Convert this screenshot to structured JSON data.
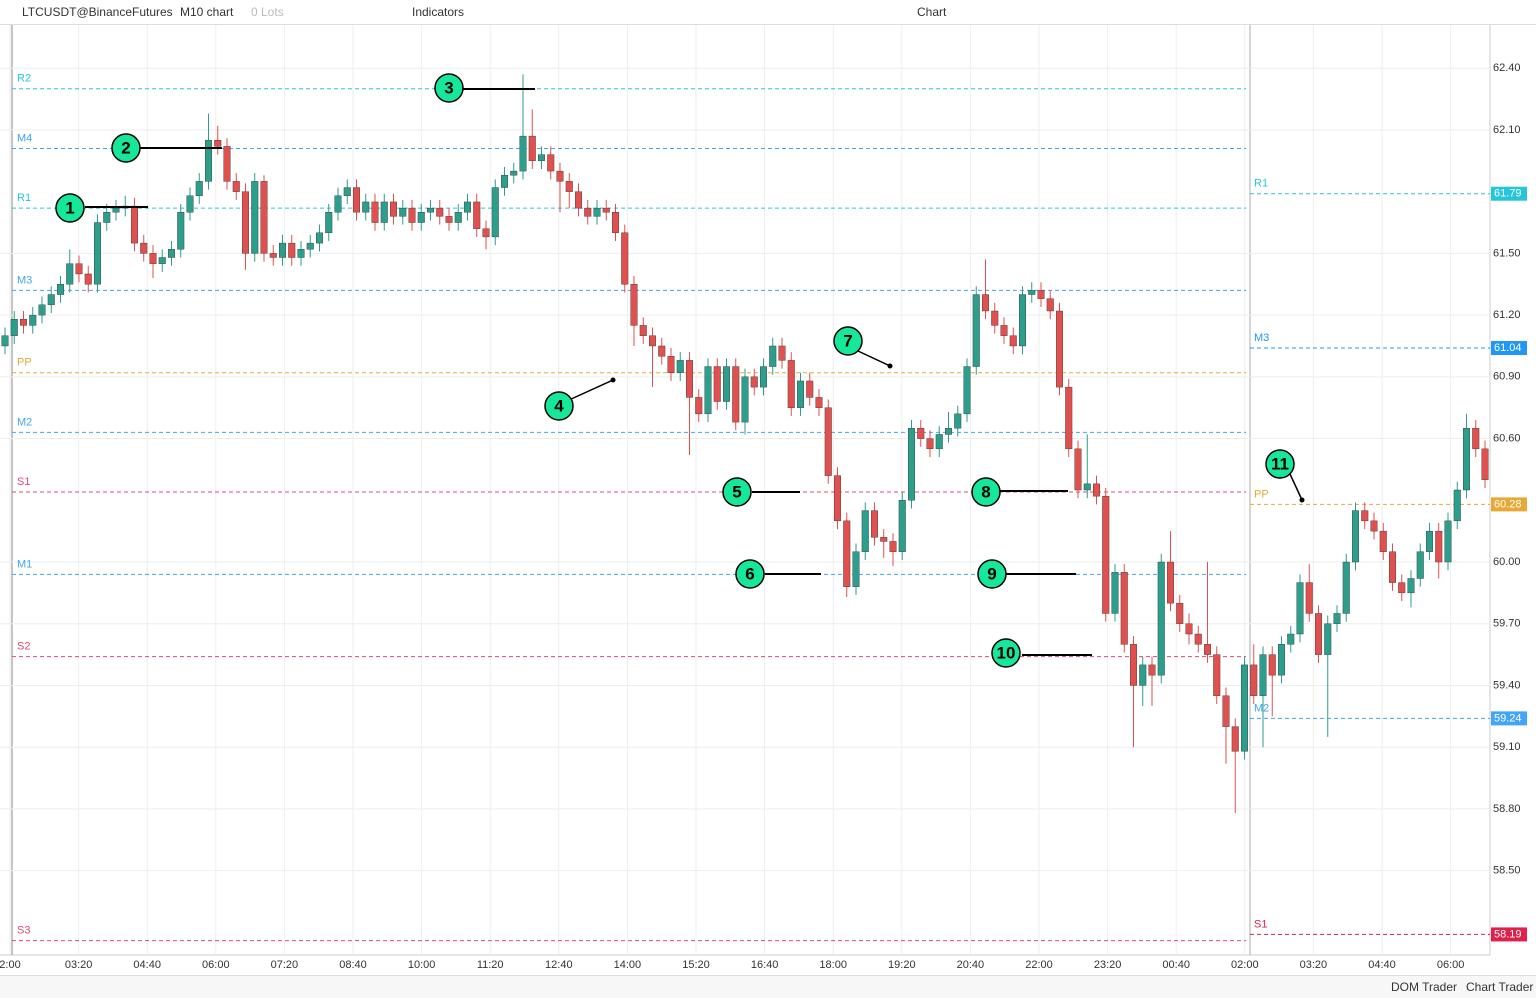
{
  "toolbar": {
    "symbol": "LTCUSDT@BinanceFutures",
    "timeframe": "M10 chart",
    "lots": "0 Lots",
    "indicators": "Indicators",
    "title": "Chart"
  },
  "footer": {
    "dom": "DOM Trader",
    "chart_trader": "Chart Trader"
  },
  "chart_data": {
    "type": "candlestick",
    "up_color": "#2e9e8c",
    "down_color": "#e0504f",
    "ylim": [
      58.09,
      62.61
    ],
    "yticks": [
      {
        "value": 62.4,
        "label": "62.40"
      },
      {
        "value": 62.1,
        "label": "62.10"
      },
      {
        "value": 61.5,
        "label": "61.50"
      },
      {
        "value": 61.2,
        "label": "61.20"
      },
      {
        "value": 60.9,
        "label": "60.90"
      },
      {
        "value": 60.6,
        "label": "60.60"
      },
      {
        "value": 60,
        "label": "60.00"
      },
      {
        "value": 59.7,
        "label": "59.70"
      },
      {
        "value": 59.4,
        "label": "59.40"
      },
      {
        "value": 59.1,
        "label": "59.10"
      },
      {
        "value": 58.8,
        "label": "58.80"
      },
      {
        "value": 58.5,
        "label": "58.50"
      }
    ],
    "xtick_labels": [
      "2:00",
      "03:20",
      "04:40",
      "06:00",
      "07:20",
      "08:40",
      "10:00",
      "11:20",
      "12:40",
      "14:00",
      "15:20",
      "16:40",
      "18:00",
      "19:20",
      "20:40",
      "22:00",
      "23:20",
      "00:40",
      "02:00",
      "03:20",
      "04:40",
      "06:00"
    ],
    "levels": [
      {
        "name": "R2",
        "value": 62.3,
        "color": "#26c6da"
      },
      {
        "name": "M4",
        "value": 62.01,
        "color": "#42a5f5"
      },
      {
        "name": "R1",
        "value": 61.72,
        "color": "#26c6da"
      },
      {
        "name": "M3",
        "value": 61.32,
        "color": "#42a5f5"
      },
      {
        "name": "PP",
        "value": 60.92,
        "color": "#e6a935"
      },
      {
        "name": "M2",
        "value": 60.63,
        "color": "#42a5f5"
      },
      {
        "name": "S1",
        "value": 60.34,
        "color": "#e04a6a"
      },
      {
        "name": "M1",
        "value": 59.94,
        "color": "#42a5f5"
      },
      {
        "name": "S2",
        "value": 59.54,
        "color": "#e04a6a"
      },
      {
        "name": "S3",
        "value": 58.16,
        "color": "#e04a6a"
      }
    ],
    "levels2": [
      {
        "name": "R1",
        "value": 61.79,
        "color": "#26c6da"
      },
      {
        "name": "M3",
        "value": 61.04,
        "color": "#2196f3"
      },
      {
        "name": "PP",
        "value": 60.28,
        "color": "#e6a935"
      },
      {
        "name": "M2",
        "value": 59.24,
        "color": "#42a5f5"
      },
      {
        "name": "S1",
        "value": 58.19,
        "color": "#e0204a"
      }
    ],
    "annotations": [
      "1",
      "2",
      "3",
      "4",
      "5",
      "6",
      "7",
      "8",
      "9",
      "10",
      "11"
    ],
    "candles": [
      [
        61.05,
        61.14,
        61.01,
        61.1
      ],
      [
        61.1,
        61.22,
        61.06,
        61.18
      ],
      [
        61.18,
        61.22,
        61.11,
        61.15
      ],
      [
        61.15,
        61.24,
        61.11,
        61.2
      ],
      [
        61.2,
        61.29,
        61.16,
        61.25
      ],
      [
        61.25,
        61.34,
        61.21,
        61.3
      ],
      [
        61.3,
        61.39,
        61.26,
        61.35
      ],
      [
        61.35,
        61.52,
        61.31,
        61.45
      ],
      [
        61.45,
        61.49,
        61.36,
        61.4
      ],
      [
        61.4,
        61.44,
        61.31,
        61.35
      ],
      [
        61.35,
        61.69,
        61.31,
        61.65
      ],
      [
        61.65,
        61.74,
        61.61,
        61.7
      ],
      [
        61.7,
        61.76,
        61.66,
        61.72
      ],
      [
        61.72,
        61.78,
        61.68,
        61.73
      ],
      [
        61.73,
        61.77,
        61.51,
        61.55
      ],
      [
        61.55,
        61.59,
        61.46,
        61.5
      ],
      [
        61.5,
        61.54,
        61.38,
        61.45
      ],
      [
        61.45,
        61.52,
        61.41,
        61.48
      ],
      [
        61.48,
        61.56,
        61.44,
        61.52
      ],
      [
        61.52,
        61.74,
        61.48,
        61.7
      ],
      [
        61.7,
        61.82,
        61.66,
        61.78
      ],
      [
        61.78,
        61.89,
        61.74,
        61.85
      ],
      [
        61.85,
        62.18,
        61.81,
        62.05
      ],
      [
        62.05,
        62.12,
        61.98,
        62.02
      ],
      [
        62.02,
        62.06,
        61.81,
        61.85
      ],
      [
        61.85,
        61.89,
        61.76,
        61.8
      ],
      [
        61.8,
        61.84,
        61.42,
        61.5
      ],
      [
        61.5,
        61.89,
        61.46,
        61.85
      ],
      [
        61.85,
        61.88,
        61.46,
        61.5
      ],
      [
        61.5,
        61.54,
        61.44,
        61.48
      ],
      [
        61.48,
        61.59,
        61.44,
        61.55
      ],
      [
        61.55,
        61.59,
        61.44,
        61.48
      ],
      [
        61.48,
        61.56,
        61.44,
        61.52
      ],
      [
        61.52,
        61.59,
        61.48,
        61.55
      ],
      [
        61.55,
        61.64,
        61.51,
        61.6
      ],
      [
        61.6,
        61.74,
        61.56,
        61.7
      ],
      [
        61.7,
        61.82,
        61.66,
        61.78
      ],
      [
        61.78,
        61.86,
        61.74,
        61.82
      ],
      [
        61.82,
        61.86,
        61.66,
        61.7
      ],
      [
        61.7,
        61.79,
        61.66,
        61.75
      ],
      [
        61.75,
        61.79,
        61.61,
        61.65
      ],
      [
        61.65,
        61.79,
        61.61,
        61.75
      ],
      [
        61.75,
        61.79,
        61.64,
        61.68
      ],
      [
        61.68,
        61.76,
        61.64,
        61.72
      ],
      [
        61.72,
        61.76,
        61.61,
        61.65
      ],
      [
        61.65,
        61.74,
        61.61,
        61.7
      ],
      [
        61.7,
        61.76,
        61.66,
        61.72
      ],
      [
        61.72,
        61.76,
        61.64,
        61.68
      ],
      [
        61.68,
        61.72,
        61.61,
        61.65
      ],
      [
        61.65,
        61.74,
        61.61,
        61.7
      ],
      [
        61.7,
        61.79,
        61.66,
        61.75
      ],
      [
        61.75,
        61.79,
        61.58,
        61.62
      ],
      [
        61.62,
        61.66,
        61.52,
        61.58
      ],
      [
        61.58,
        61.86,
        61.54,
        61.82
      ],
      [
        61.82,
        61.92,
        61.78,
        61.88
      ],
      [
        61.88,
        61.94,
        61.84,
        61.9
      ],
      [
        61.9,
        62.37,
        61.86,
        62.07
      ],
      [
        62.07,
        62.2,
        61.91,
        61.95
      ],
      [
        61.95,
        62.02,
        61.91,
        61.98
      ],
      [
        61.98,
        62.02,
        61.86,
        61.9
      ],
      [
        61.9,
        61.94,
        61.7,
        61.85
      ],
      [
        61.85,
        61.89,
        61.72,
        61.8
      ],
      [
        61.8,
        61.84,
        61.68,
        61.72
      ],
      [
        61.72,
        61.76,
        61.64,
        61.68
      ],
      [
        61.68,
        61.76,
        61.64,
        61.72
      ],
      [
        61.72,
        61.76,
        61.66,
        61.7
      ],
      [
        61.7,
        61.74,
        61.56,
        61.6
      ],
      [
        61.6,
        61.64,
        61.31,
        61.35
      ],
      [
        61.35,
        61.39,
        61.05,
        61.15
      ],
      [
        61.15,
        61.19,
        61.06,
        61.1
      ],
      [
        61.1,
        61.14,
        60.85,
        61.05
      ],
      [
        61.05,
        61.09,
        60.96,
        61.0
      ],
      [
        61.0,
        61.04,
        60.88,
        60.92
      ],
      [
        60.92,
        61.02,
        60.88,
        60.98
      ],
      [
        60.98,
        61.02,
        60.52,
        60.8
      ],
      [
        60.8,
        60.84,
        60.68,
        60.72
      ],
      [
        60.72,
        60.99,
        60.68,
        60.95
      ],
      [
        60.95,
        60.99,
        60.74,
        60.78
      ],
      [
        60.78,
        60.99,
        60.74,
        60.95
      ],
      [
        60.95,
        60.99,
        60.64,
        60.68
      ],
      [
        60.68,
        60.94,
        60.62,
        60.9
      ],
      [
        60.9,
        60.94,
        60.81,
        60.85
      ],
      [
        60.85,
        60.99,
        60.81,
        60.95
      ],
      [
        60.95,
        61.09,
        60.91,
        61.05
      ],
      [
        61.05,
        61.09,
        60.94,
        60.98
      ],
      [
        60.98,
        61.02,
        60.71,
        60.75
      ],
      [
        60.75,
        60.92,
        60.71,
        60.88
      ],
      [
        60.88,
        60.92,
        60.76,
        60.8
      ],
      [
        60.8,
        60.84,
        60.71,
        60.75
      ],
      [
        60.75,
        60.79,
        60.38,
        60.42
      ],
      [
        60.42,
        60.46,
        60.16,
        60.2
      ],
      [
        60.2,
        60.24,
        59.83,
        59.88
      ],
      [
        59.88,
        60.09,
        59.84,
        60.05
      ],
      [
        60.05,
        60.29,
        60.01,
        60.25
      ],
      [
        60.25,
        60.29,
        60.08,
        60.12
      ],
      [
        60.12,
        60.16,
        60.02,
        60.1
      ],
      [
        60.1,
        60.14,
        59.98,
        60.05
      ],
      [
        60.05,
        60.34,
        60.01,
        60.3
      ],
      [
        60.3,
        60.69,
        60.26,
        60.65
      ],
      [
        60.65,
        60.69,
        60.56,
        60.6
      ],
      [
        60.6,
        60.64,
        60.51,
        60.55
      ],
      [
        60.55,
        60.66,
        60.51,
        60.62
      ],
      [
        60.62,
        60.73,
        60.58,
        60.65
      ],
      [
        60.65,
        60.76,
        60.61,
        60.72
      ],
      [
        60.72,
        60.99,
        60.68,
        60.95
      ],
      [
        60.95,
        61.34,
        60.91,
        61.3
      ],
      [
        61.3,
        61.47,
        61.18,
        61.22
      ],
      [
        61.22,
        61.26,
        61.11,
        61.15
      ],
      [
        61.15,
        61.19,
        61.06,
        61.1
      ],
      [
        61.1,
        61.14,
        61.01,
        61.05
      ],
      [
        61.05,
        61.34,
        61.01,
        61.3
      ],
      [
        61.3,
        61.36,
        61.26,
        61.32
      ],
      [
        61.32,
        61.36,
        61.24,
        61.28
      ],
      [
        61.28,
        61.32,
        61.18,
        61.22
      ],
      [
        61.22,
        61.26,
        60.81,
        60.85
      ],
      [
        60.85,
        60.89,
        60.51,
        60.55
      ],
      [
        60.55,
        60.59,
        60.31,
        60.35
      ],
      [
        60.35,
        60.62,
        60.31,
        60.38
      ],
      [
        60.38,
        60.42,
        60.28,
        60.32
      ],
      [
        60.32,
        60.36,
        59.71,
        59.75
      ],
      [
        59.75,
        59.99,
        59.71,
        59.95
      ],
      [
        59.95,
        59.99,
        59.56,
        59.6
      ],
      [
        59.6,
        59.64,
        59.1,
        59.4
      ],
      [
        59.4,
        59.54,
        59.3,
        59.5
      ],
      [
        59.5,
        59.54,
        59.3,
        59.45
      ],
      [
        59.45,
        60.04,
        59.41,
        60.0
      ],
      [
        60.0,
        60.15,
        59.76,
        59.8
      ],
      [
        59.8,
        59.84,
        59.66,
        59.7
      ],
      [
        59.7,
        59.75,
        59.6,
        59.65
      ],
      [
        59.65,
        59.69,
        59.56,
        59.6
      ],
      [
        59.6,
        60.0,
        59.51,
        59.55
      ],
      [
        59.55,
        59.59,
        59.31,
        59.35
      ],
      [
        59.35,
        59.39,
        59.02,
        59.2
      ],
      [
        59.2,
        59.24,
        58.78,
        59.08
      ],
      [
        59.08,
        59.54,
        59.04,
        59.5
      ],
      [
        59.5,
        59.6,
        59.31,
        59.35
      ],
      [
        59.35,
        59.59,
        59.1,
        59.55
      ],
      [
        59.55,
        59.59,
        59.25,
        59.45
      ],
      [
        59.45,
        59.64,
        59.41,
        59.6
      ],
      [
        59.6,
        59.69,
        59.56,
        59.65
      ],
      [
        59.65,
        59.94,
        59.61,
        59.9
      ],
      [
        59.9,
        59.99,
        59.71,
        59.75
      ],
      [
        59.75,
        59.79,
        59.51,
        59.55
      ],
      [
        59.55,
        59.74,
        59.15,
        59.7
      ],
      [
        59.7,
        59.79,
        59.66,
        59.75
      ],
      [
        59.75,
        60.04,
        59.71,
        60.0
      ],
      [
        60.0,
        60.29,
        59.96,
        60.25
      ],
      [
        60.25,
        60.29,
        60.16,
        60.2
      ],
      [
        60.2,
        60.24,
        60.11,
        60.15
      ],
      [
        60.15,
        60.19,
        60.01,
        60.05
      ],
      [
        60.05,
        60.09,
        59.86,
        59.9
      ],
      [
        59.9,
        59.94,
        59.81,
        59.85
      ],
      [
        59.85,
        59.96,
        59.78,
        59.92
      ],
      [
        59.92,
        60.09,
        59.88,
        60.05
      ],
      [
        60.05,
        60.19,
        60.01,
        60.15
      ],
      [
        60.15,
        60.19,
        59.92,
        60.0
      ],
      [
        60.0,
        60.24,
        59.96,
        60.2
      ],
      [
        60.2,
        60.39,
        60.16,
        60.35
      ],
      [
        60.35,
        60.72,
        60.31,
        60.65
      ],
      [
        60.65,
        60.69,
        60.51,
        60.55
      ],
      [
        60.55,
        60.59,
        60.36,
        60.4
      ]
    ]
  }
}
